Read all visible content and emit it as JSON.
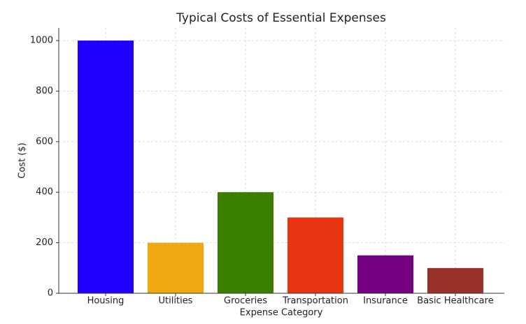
{
  "chart_data": {
    "type": "bar",
    "title": "Typical Costs of Essential Expenses",
    "x_label": "Expense Category",
    "y_label": "Cost ($)",
    "categories": [
      "Housing",
      "Utilities",
      "Groceries",
      "Transportation",
      "Insurance",
      "Basic Healthcare"
    ],
    "values": [
      1000,
      200,
      400,
      300,
      150,
      100
    ],
    "colors": [
      "#2200ff",
      "#f0a811",
      "#3b7f00",
      "#e83511",
      "#730081",
      "#983228"
    ],
    "ylim": [
      0,
      1050
    ],
    "yticks": [
      0,
      200,
      400,
      600,
      800,
      1000
    ],
    "grid": true
  }
}
